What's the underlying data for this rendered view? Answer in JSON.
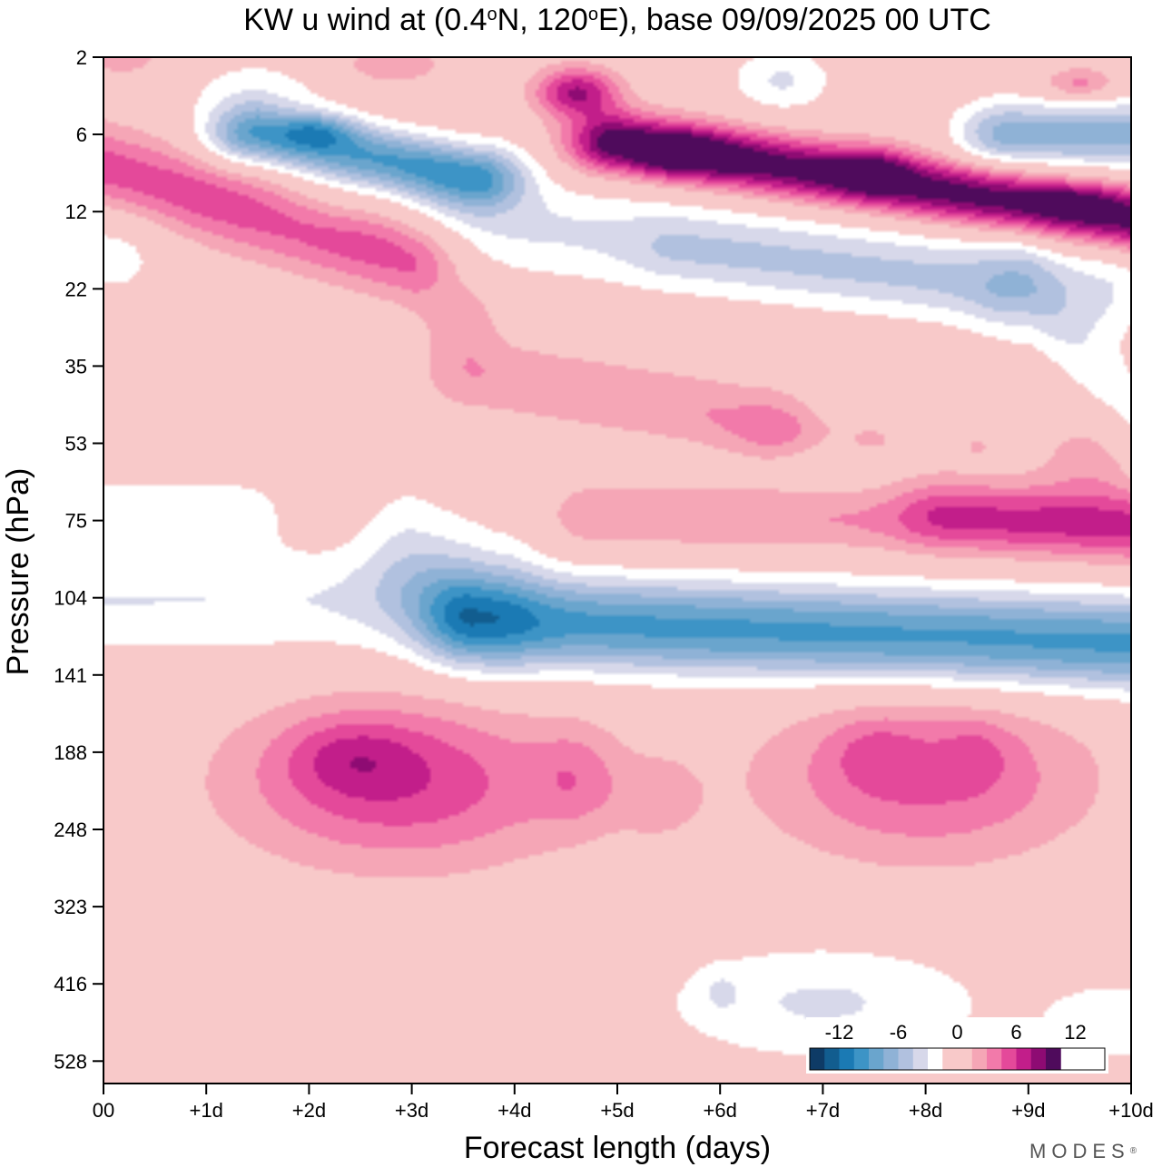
{
  "chart_data": {
    "type": "contour",
    "title_main": "KW u wind at (0.4",
    "title_lat_unit": "N, 120",
    "title_lon_unit": "E),  base 09/09/2025  00 UTC",
    "degree_symbol": "o",
    "xlabel": "Forecast length (days)",
    "ylabel": "Pressure (hPa)",
    "x_range_days": [
      0,
      10
    ],
    "x_ticks": [
      {
        "day": 0,
        "label": "00"
      },
      {
        "day": 1,
        "label": "+1d"
      },
      {
        "day": 2,
        "label": "+2d"
      },
      {
        "day": 3,
        "label": "+3d"
      },
      {
        "day": 4,
        "label": "+4d"
      },
      {
        "day": 5,
        "label": "+5d"
      },
      {
        "day": 6,
        "label": "+6d"
      },
      {
        "day": 7,
        "label": "+7d"
      },
      {
        "day": 8,
        "label": "+8d"
      },
      {
        "day": 9,
        "label": "+9d"
      },
      {
        "day": 10,
        "label": "+10d"
      }
    ],
    "y_ticks": [
      {
        "level": 0,
        "label": "2"
      },
      {
        "level": 1,
        "label": "6"
      },
      {
        "level": 2,
        "label": "12"
      },
      {
        "level": 3,
        "label": "22"
      },
      {
        "level": 4,
        "label": "35"
      },
      {
        "level": 5,
        "label": "53"
      },
      {
        "level": 6,
        "label": "75"
      },
      {
        "level": 7,
        "label": "104"
      },
      {
        "level": 8,
        "label": "141"
      },
      {
        "level": 9,
        "label": "188"
      },
      {
        "level": 10,
        "label": "248"
      },
      {
        "level": 11,
        "label": "323"
      },
      {
        "level": 12,
        "label": "416"
      },
      {
        "level": 13,
        "label": "528"
      }
    ],
    "y_level_range": [
      0,
      13.3
    ],
    "levels": {
      "bin_edges": [
        -15,
        -13.5,
        -12,
        -10.5,
        -9,
        -7.5,
        -6,
        -4.5,
        -3,
        -1.5,
        1.5,
        3,
        4.5,
        6,
        7.5,
        9,
        10.5,
        12,
        13.5,
        15
      ],
      "colors": [
        "#0e3b66",
        "#125d8f",
        "#1b7ab4",
        "#3d94c6",
        "#6aa5cd",
        "#8fb2d6",
        "#b1c1df",
        "#d7d8ea",
        "#ffffff",
        "#f8c9c9",
        "#f5a6b6",
        "#f27aaa",
        "#e4499a",
        "#c21e8a",
        "#8e0b73",
        "#4f0b5c"
      ],
      "labels": [
        {
          "value": -12,
          "text": "-12"
        },
        {
          "value": -6,
          "text": "-6"
        },
        {
          "value": 0,
          "text": "0"
        },
        {
          "value": 6,
          "text": "6"
        },
        {
          "value": 12,
          "text": "12"
        }
      ]
    },
    "field_features": [
      {
        "kind": "blob",
        "day": 2.9,
        "level": 9.4,
        "sigma_day": 1.15,
        "sigma_level": 0.75,
        "amplitude": 5.8
      },
      {
        "kind": "blob",
        "day": 2.4,
        "level": 9.05,
        "sigma_day": 0.45,
        "sigma_level": 0.35,
        "amplitude": 2.6
      },
      {
        "kind": "blob",
        "day": 4.6,
        "level": 9.35,
        "sigma_day": 0.3,
        "sigma_level": 0.45,
        "amplitude": 2.5
      },
      {
        "kind": "blob",
        "day": 5.4,
        "level": 9.6,
        "sigma_day": 0.28,
        "sigma_level": 0.35,
        "amplitude": 2.0
      },
      {
        "kind": "blob",
        "day": 8.0,
        "level": 9.35,
        "sigma_day": 1.1,
        "sigma_level": 0.75,
        "amplitude": 4.9
      },
      {
        "kind": "blob",
        "day": 7.5,
        "level": 9.0,
        "sigma_day": 0.3,
        "sigma_level": 0.3,
        "amplitude": 1.8
      },
      {
        "kind": "blob",
        "day": 8.5,
        "level": 9.0,
        "sigma_day": 0.25,
        "sigma_level": 0.3,
        "amplitude": 1.5
      },
      {
        "kind": "blob",
        "day": 7.0,
        "level": 12.25,
        "sigma_day": 1.15,
        "sigma_level": 0.55,
        "amplitude": -3.2
      },
      {
        "kind": "blob",
        "day": 9.9,
        "level": 12.5,
        "sigma_day": 0.55,
        "sigma_level": 0.4,
        "amplitude": -2.5
      },
      {
        "kind": "blob",
        "day": 6.0,
        "level": 12.1,
        "sigma_day": 0.12,
        "sigma_level": 0.2,
        "amplitude": -1.4
      },
      {
        "kind": "band",
        "day_start": 3.6,
        "day_end": 10.0,
        "level_start": 7.3,
        "level_end": 7.6,
        "sigma_level": 0.42,
        "amplitude": -9.4
      },
      {
        "kind": "band",
        "day_start": 0.0,
        "day_end": 3.0,
        "level_start": 7.05,
        "level_end": 7.05,
        "sigma_level": 0.5,
        "amplitude": -3.0
      },
      {
        "kind": "band",
        "day_start": 3.0,
        "day_end": 3.8,
        "level_start": 6.5,
        "level_end": 7.0,
        "sigma_level": 0.7,
        "amplitude": -2.8
      },
      {
        "kind": "band",
        "day_start": 0.0,
        "day_end": 1.3,
        "level_start": 5.9,
        "level_end": 5.9,
        "sigma_level": 0.35,
        "amplitude": -2.3
      },
      {
        "kind": "band",
        "day_start": 4.8,
        "day_end": 10.0,
        "level_start": 5.95,
        "level_end": 6.05,
        "sigma_level": 0.3,
        "amplitude": 3.0
      },
      {
        "kind": "band",
        "day_start": 8.2,
        "day_end": 10.0,
        "level_start": 5.9,
        "level_end": 6.1,
        "sigma_level": 0.35,
        "amplitude": 3.6
      },
      {
        "kind": "blob",
        "day": 9.6,
        "level": 5.2,
        "sigma_day": 0.35,
        "sigma_level": 0.4,
        "amplitude": 2.2
      },
      {
        "kind": "band",
        "day_start": 3.6,
        "day_end": 6.4,
        "level_start": 4.1,
        "level_end": 4.7,
        "sigma_level": 0.35,
        "amplitude": 2.9
      },
      {
        "kind": "blob",
        "day": 3.5,
        "level": 3.4,
        "sigma_day": 0.25,
        "sigma_level": 0.3,
        "amplitude": 2.2
      },
      {
        "kind": "blob",
        "day": 6.6,
        "level": 4.85,
        "sigma_day": 0.35,
        "sigma_level": 0.2,
        "amplitude": 1.8
      },
      {
        "kind": "blob",
        "day": 7.5,
        "level": 4.95,
        "sigma_day": 0.25,
        "sigma_level": 0.18,
        "amplitude": 1.6
      },
      {
        "kind": "blob",
        "day": 8.5,
        "level": 5.02,
        "sigma_day": 0.15,
        "sigma_level": 0.15,
        "amplitude": 1.5
      },
      {
        "kind": "band",
        "day_start": 3.4,
        "day_end": 9.7,
        "level_start": 2.1,
        "level_end": 3.0,
        "sigma_level": 0.45,
        "amplitude": -3.2
      },
      {
        "kind": "band",
        "day_start": 9.0,
        "day_end": 10.0,
        "level_start": 3.0,
        "level_end": 4.6,
        "sigma_level": 0.5,
        "amplitude": -2.2
      },
      {
        "kind": "blob",
        "day": 2.2,
        "level": 1.9,
        "sigma_day": 0.45,
        "sigma_level": 0.3,
        "amplitude": -1.6
      },
      {
        "kind": "blob",
        "day": 0.1,
        "level": 2.5,
        "sigma_day": 0.4,
        "sigma_level": 0.5,
        "amplitude": -2.2
      },
      {
        "kind": "band",
        "day_start": 0.0,
        "day_end": 3.0,
        "level_start": 1.45,
        "level_end": 2.6,
        "sigma_level": 0.4,
        "amplitude": 5.5
      },
      {
        "kind": "band",
        "day_start": 1.5,
        "day_end": 3.6,
        "level_start": 1.0,
        "level_end": 1.55,
        "sigma_level": 0.28,
        "amplitude": -9.0
      },
      {
        "kind": "blob",
        "day": 2.1,
        "level": 0.95,
        "sigma_day": 0.25,
        "sigma_level": 0.15,
        "amplitude": -4.0
      },
      {
        "kind": "band",
        "day_start": 5.0,
        "day_end": 10.0,
        "level_start": 1.1,
        "level_end": 2.1,
        "sigma_level": 0.28,
        "amplitude": 10.2
      },
      {
        "kind": "blob",
        "day": 5.6,
        "level": 1.25,
        "sigma_day": 0.35,
        "sigma_level": 0.2,
        "amplitude": 3.8
      },
      {
        "kind": "blob",
        "day": 7.5,
        "level": 1.45,
        "sigma_day": 0.25,
        "sigma_level": 0.2,
        "amplitude": 3.6
      },
      {
        "kind": "blob",
        "day": 9.5,
        "level": 1.85,
        "sigma_day": 0.3,
        "sigma_level": 0.15,
        "amplitude": 2.5
      },
      {
        "kind": "blob",
        "day": 4.6,
        "level": 0.45,
        "sigma_day": 0.28,
        "sigma_level": 0.22,
        "amplitude": 7.5
      },
      {
        "kind": "blob",
        "day": 9.5,
        "level": 0.35,
        "sigma_day": 0.25,
        "sigma_level": 0.15,
        "amplitude": 3.8
      },
      {
        "kind": "blob",
        "day": 0.2,
        "level": 0.0,
        "sigma_day": 0.3,
        "sigma_level": 0.2,
        "amplitude": 2.3
      },
      {
        "kind": "blob",
        "day": 2.8,
        "level": 0.1,
        "sigma_day": 0.4,
        "sigma_level": 0.2,
        "amplitude": 2.5
      },
      {
        "kind": "band",
        "day_start": 8.8,
        "day_end": 10.0,
        "level_start": 1.0,
        "level_end": 1.0,
        "sigma_level": 0.3,
        "amplitude": -6.8
      },
      {
        "kind": "blob",
        "day": 6.6,
        "level": 0.3,
        "sigma_day": 0.35,
        "sigma_level": 0.3,
        "amplitude": -3.2
      },
      {
        "kind": "band",
        "day_start": 5.6,
        "day_end": 8.6,
        "level_start": 2.5,
        "level_end": 3.0,
        "sigma_level": 0.3,
        "amplitude": -1.8
      },
      {
        "kind": "blob",
        "day": 1.5,
        "level": 0.4,
        "sigma_day": 0.5,
        "sigma_level": 0.3,
        "amplitude": -2.0
      }
    ],
    "colorbar_value_range": [
      -15,
      15
    ],
    "brand_text": "MODES",
    "brand_mark": "®"
  }
}
